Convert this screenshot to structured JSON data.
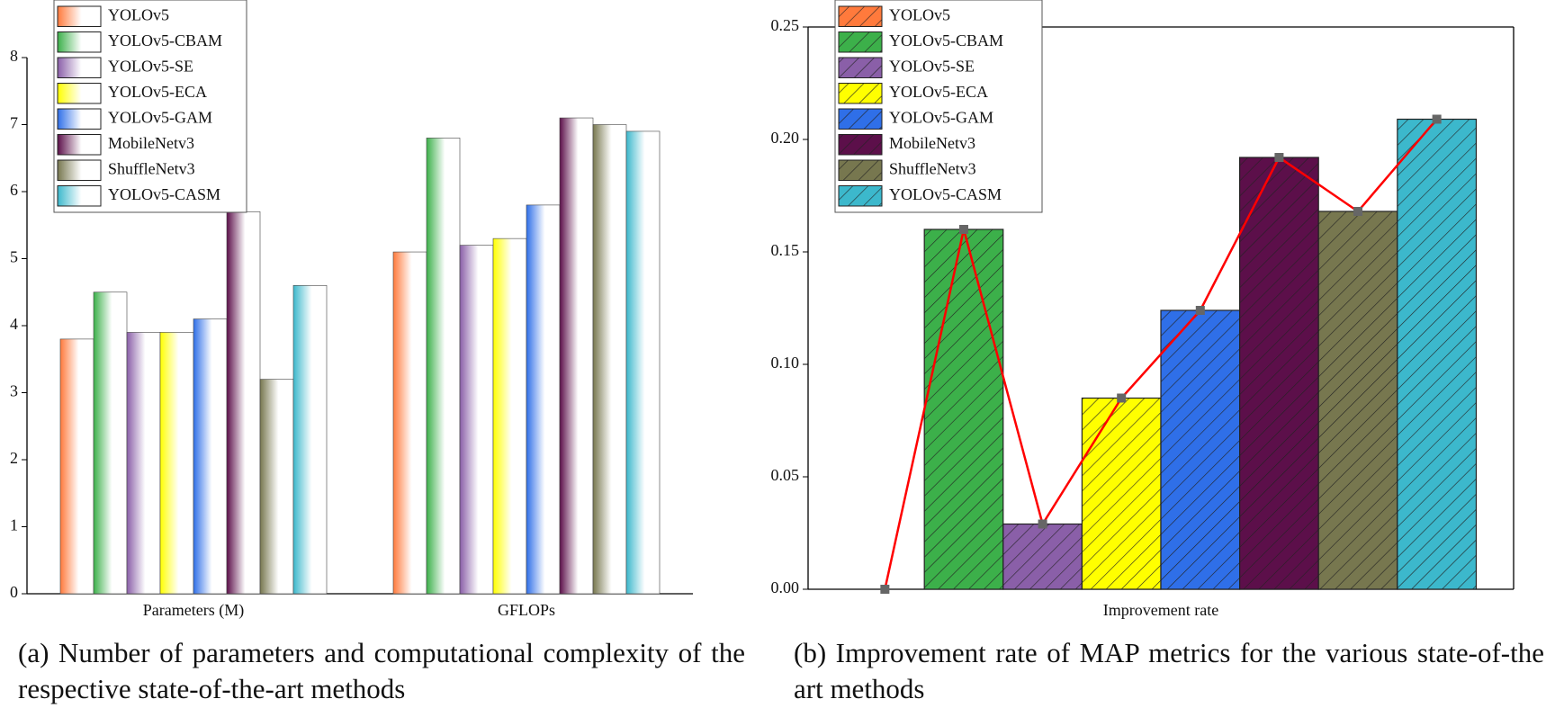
{
  "chart_data": [
    {
      "type": "bar",
      "categories": [
        "Parameters (M)",
        "GFLOPs"
      ],
      "series": [
        {
          "name": "YOLOv5",
          "color": "#ff7a3c",
          "values": [
            3.8,
            5.1
          ]
        },
        {
          "name": "YOLOv5-CBAM",
          "color": "#3cb04a",
          "values": [
            4.5,
            6.8
          ]
        },
        {
          "name": "YOLOv5-SE",
          "color": "#8a5fa8",
          "values": [
            3.9,
            5.2
          ]
        },
        {
          "name": "YOLOv5-ECA",
          "color": "#ffff00",
          "values": [
            3.9,
            5.3
          ]
        },
        {
          "name": "YOLOv5-GAM",
          "color": "#2f6fe8",
          "values": [
            4.1,
            5.8
          ]
        },
        {
          "name": "MobileNetv3",
          "color": "#5c0f4a",
          "values": [
            5.7,
            7.1
          ]
        },
        {
          "name": "ShuffleNetv3",
          "color": "#77774f",
          "values": [
            3.2,
            7.0
          ]
        },
        {
          "name": "YOLOv5-CASM",
          "color": "#3cb8cc",
          "values": [
            4.6,
            6.9
          ]
        }
      ],
      "ylim": [
        0,
        8
      ],
      "yticks": [
        0,
        1,
        2,
        3,
        4,
        5,
        6,
        7,
        8
      ],
      "legend": "upper left",
      "caption": "(a)  Number of parameters and computational complexity of the respective state-of-the-art methods"
    },
    {
      "type": "combo",
      "xlabel": "Improvement rate",
      "categories": [
        "YOLOv5",
        "YOLOv5-CBAM",
        "YOLOv5-SE",
        "YOLOv5-ECA",
        "YOLOv5-GAM",
        "MobileNetv3",
        "ShuffleNetv3",
        "YOLOv5-CASM"
      ],
      "values": [
        0,
        0.16,
        0.029,
        0.085,
        0.124,
        0.192,
        0.168,
        0.209
      ],
      "colors": [
        "#ff7a3c",
        "#3cb04a",
        "#8a5fa8",
        "#ffff00",
        "#2f6fe8",
        "#5c0f4a",
        "#77774f",
        "#3cb8cc"
      ],
      "hatch": true,
      "line_color": "#ff0000",
      "marker_color": "#666666",
      "ylim": [
        0,
        0.25
      ],
      "yticks": [
        {
          "value": 0,
          "label": "0.00"
        },
        {
          "value": 0.05,
          "label": "0.05"
        },
        {
          "value": 0.1,
          "label": "0.10"
        },
        {
          "value": 0.15,
          "label": "0.15"
        },
        {
          "value": 0.2,
          "label": "0.20"
        },
        {
          "value": 0.25,
          "label": "0.25"
        }
      ],
      "legend": "upper left",
      "caption": "(b) Improvement rate of MAP metrics for the various state-of-the art methods"
    }
  ]
}
